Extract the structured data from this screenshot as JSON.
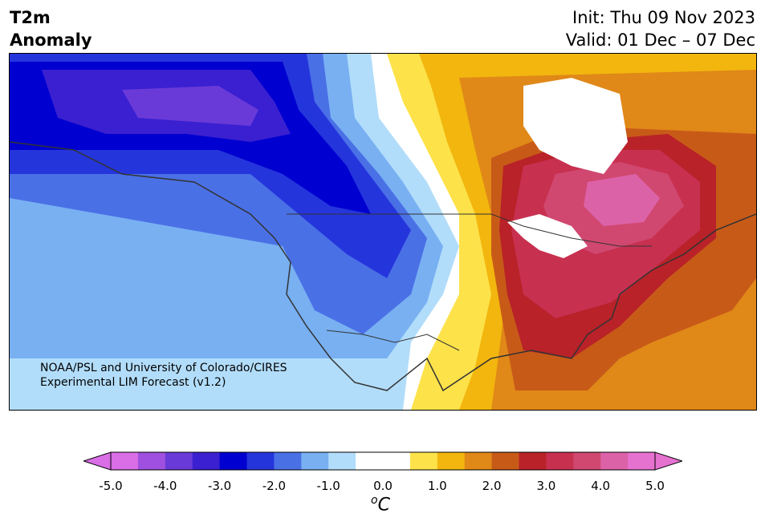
{
  "header": {
    "title_line1": "T2m",
    "title_line2": "Anomaly",
    "init": "Init: Thu 09 Nov 2023",
    "valid": "Valid: 01 Dec – 07 Dec"
  },
  "map": {
    "credit_line1": "NOAA/PSL and University of Colorado/CIRES",
    "credit_line2": "Experimental LIM Forecast (v1.2)"
  },
  "colorbar": {
    "units_base": "C",
    "units_sup": "o",
    "tick_labels": [
      "-5.0",
      "-4.0",
      "-3.0",
      "-2.0",
      "-1.0",
      "0.0",
      "1.0",
      "2.0",
      "3.0",
      "4.0",
      "5.0"
    ],
    "colors": [
      "#d96ee6",
      "#a050e0",
      "#6a3ad8",
      "#3a20d0",
      "#0000d0",
      "#2535dc",
      "#4a70e6",
      "#78b0f2",
      "#b2ddfa",
      "#ffffff",
      "#ffffff",
      "#fde24a",
      "#f2b60e",
      "#e08818",
      "#c85a18",
      "#b82228",
      "#c83050",
      "#d04870",
      "#dc62a8",
      "#e672d0"
    ],
    "extend_min_color": "#d96ee6",
    "extend_max_color": "#e672d0"
  }
}
